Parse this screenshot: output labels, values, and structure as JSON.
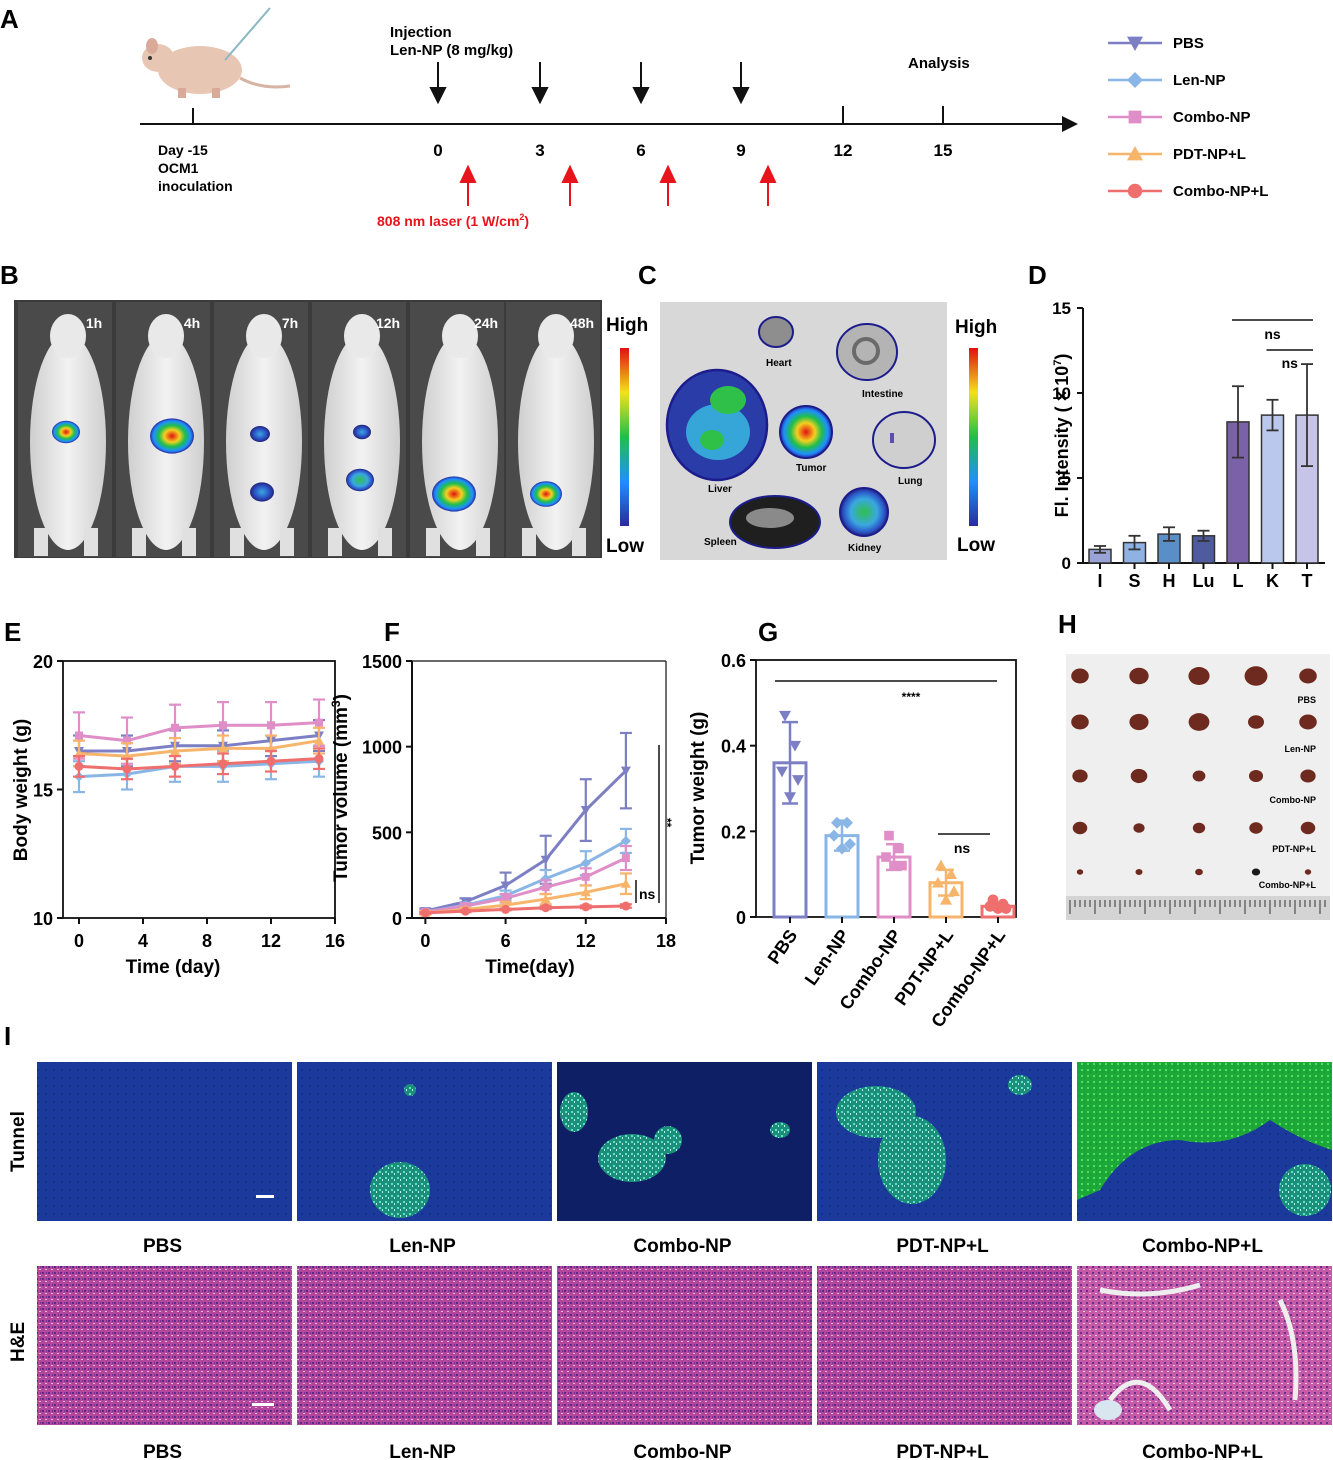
{
  "panels": {
    "A": "A",
    "B": "B",
    "C": "C",
    "D": "D",
    "E": "E",
    "F": "F",
    "G": "G",
    "H": "H",
    "I": "I"
  },
  "colors": {
    "PBS": "#7c7fc4",
    "Len-NP": "#8ab6e6",
    "Combo-NP": "#df8ec8",
    "PDT-NP+L": "#f6b56b",
    "Combo-NP+L": "#ef6e6e",
    "red_arrow": "#e8141b",
    "bar_I": "#9aa3d6",
    "bar_S": "#8fb2e3",
    "bar_H": "#5a8ec9",
    "bar_Lu": "#4e5b9e",
    "bar_L": "#7b61a8",
    "bar_K": "#b9c8ec",
    "bar_T": "#c6c4e8"
  },
  "panelA": {
    "day_minus15": "Day -15",
    "ocm1": "OCM1",
    "inoculation": "inoculation",
    "injection": "Injection",
    "dose": "Len-NP (8 mg/kg)",
    "analysis": "Analysis",
    "ticks": [
      "0",
      "3",
      "6",
      "9",
      "12",
      "15"
    ],
    "laser": "808 nm laser (1 W/cm",
    "laser_sup": "2",
    "laser_close": ")",
    "legend": [
      "PBS",
      "Len-NP",
      "Combo-NP",
      "PDT-NP+L",
      "Combo-NP+L"
    ]
  },
  "panelB": {
    "times": [
      "1h",
      "4h",
      "7h",
      "12h",
      "24h",
      "48h"
    ],
    "high": "High",
    "low": "Low"
  },
  "panelC": {
    "organs": [
      "Heart",
      "Intestine",
      "Liver",
      "Tumor",
      "Lung",
      "Spleen",
      "Kidney"
    ],
    "high": "High",
    "low": "Low"
  },
  "chart_data": [
    {
      "panel": "D",
      "type": "bar",
      "categories": [
        "I",
        "S",
        "H",
        "Lu",
        "L",
        "K",
        "T"
      ],
      "values": [
        0.8,
        1.2,
        1.7,
        1.6,
        8.3,
        8.7,
        8.7
      ],
      "errors": [
        0.2,
        0.4,
        0.4,
        0.3,
        2.1,
        0.9,
        3.0
      ],
      "ylabel_pre": "Fl. Intensity ( × 10",
      "ylabel_sup": "7",
      "ylabel_post": ")",
      "yticks": [
        "0",
        "5",
        "10",
        "15"
      ],
      "ylim": [
        0,
        15
      ],
      "annotations": [
        "ns",
        "ns"
      ]
    },
    {
      "panel": "E",
      "type": "line",
      "xlabel": "Time (day)",
      "ylabel": "Body weight (g)",
      "x": [
        0,
        3,
        6,
        9,
        12,
        15
      ],
      "xticks": [
        "0",
        "4",
        "8",
        "12",
        "16"
      ],
      "yticks": [
        "10",
        "15",
        "20"
      ],
      "xlim": [
        -1,
        16
      ],
      "ylim": [
        10,
        20
      ],
      "series": [
        {
          "key": "PBS",
          "values": [
            16.5,
            16.5,
            16.7,
            16.7,
            16.9,
            17.1
          ],
          "err": 0.6
        },
        {
          "key": "Len-NP",
          "values": [
            15.5,
            15.6,
            15.9,
            15.9,
            16.0,
            16.1
          ],
          "err": 0.6
        },
        {
          "key": "Combo-NP",
          "values": [
            17.1,
            16.9,
            17.4,
            17.5,
            17.5,
            17.6
          ],
          "err": 0.9
        },
        {
          "key": "PDT-NP+L",
          "values": [
            16.4,
            16.3,
            16.5,
            16.6,
            16.6,
            16.9
          ],
          "err": 0.5
        },
        {
          "key": "Combo-NP+L",
          "values": [
            15.9,
            15.8,
            15.9,
            16.0,
            16.1,
            16.2
          ],
          "err": 0.4
        }
      ]
    },
    {
      "panel": "F",
      "type": "line",
      "xlabel": "Time(day)",
      "ylabel_pre": "Tumor volume (mm",
      "ylabel_sup": "3",
      "ylabel_post": ")",
      "x": [
        0,
        3,
        6,
        9,
        12,
        15
      ],
      "xticks": [
        "0",
        "6",
        "12",
        "18"
      ],
      "yticks": [
        "0",
        "500",
        "1000",
        "1500"
      ],
      "xlim": [
        -1,
        18
      ],
      "ylim": [
        0,
        1500
      ],
      "series": [
        {
          "key": "PBS",
          "values": [
            40,
            95,
            190,
            340,
            630,
            860
          ],
          "err": [
            15,
            20,
            75,
            140,
            180,
            220
          ]
        },
        {
          "key": "Len-NP",
          "values": [
            35,
            75,
            130,
            230,
            320,
            450
          ],
          "err": [
            10,
            15,
            30,
            50,
            70,
            70
          ]
        },
        {
          "key": "Combo-NP",
          "values": [
            35,
            70,
            115,
            180,
            240,
            350
          ],
          "err": [
            10,
            15,
            25,
            40,
            50,
            70
          ]
        },
        {
          "key": "PDT-NP+L",
          "values": [
            30,
            50,
            75,
            110,
            150,
            200
          ],
          "err": [
            10,
            10,
            20,
            30,
            40,
            60
          ]
        },
        {
          "key": "Combo-NP+L",
          "values": [
            30,
            40,
            50,
            60,
            65,
            70
          ],
          "err": [
            5,
            5,
            5,
            8,
            8,
            10
          ]
        }
      ],
      "annotations": [
        "**",
        "ns"
      ]
    },
    {
      "panel": "G",
      "type": "bar",
      "ylabel": "Tumor weight (g)",
      "categories": [
        "PBS",
        "Len-NP",
        "Combo-NP",
        "PDT-NP+L",
        "Combo-NP+L"
      ],
      "values": [
        0.36,
        0.19,
        0.14,
        0.08,
        0.025
      ],
      "errors": [
        0.095,
        0.035,
        0.03,
        0.03,
        0.008
      ],
      "points": [
        [
          0.47,
          0.4,
          0.34,
          0.32,
          0.28
        ],
        [
          0.22,
          0.22,
          0.19,
          0.17,
          0.16
        ],
        [
          0.19,
          0.16,
          0.14,
          0.12,
          0.12
        ],
        [
          0.12,
          0.1,
          0.08,
          0.06,
          0.04
        ],
        [
          0.04,
          0.03,
          0.025,
          0.02,
          0.02
        ]
      ],
      "yticks": [
        "0",
        "0.2",
        "0.4",
        "0.6"
      ],
      "ylim": [
        0,
        0.6
      ],
      "annotations": [
        "****",
        "ns"
      ]
    }
  ],
  "panelH": {
    "labels": [
      "PBS",
      "Len-NP",
      "Combo-NP",
      "PDT-NP+L",
      "Combo-NP+L"
    ]
  },
  "panelI": {
    "row1": "Tunnel",
    "row2": "H&E",
    "captions_top": [
      "PBS",
      "Len-NP",
      "Combo-NP",
      "PDT-NP+L",
      "Combo-NP+L"
    ],
    "captions_bottom": [
      "PBS",
      "Len-NP",
      "Combo-NP",
      "PDT-NP+L",
      "Combo-NP+L"
    ]
  }
}
